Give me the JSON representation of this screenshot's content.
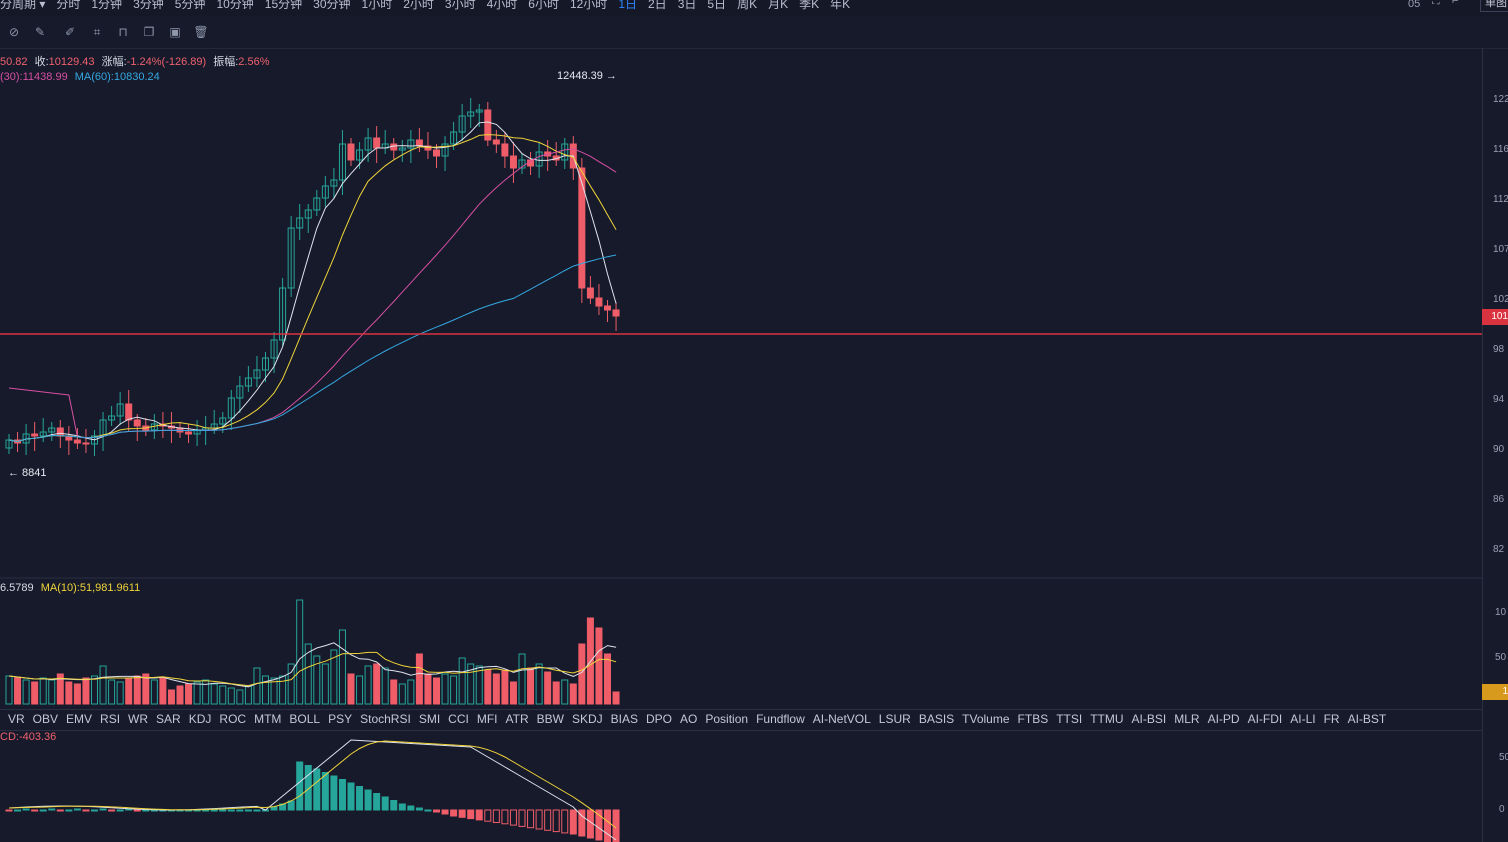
{
  "topbar": {
    "periods": [
      "分周期 ▾",
      "分时",
      "1分钟",
      "3分钟",
      "5分钟",
      "10分钟",
      "15分钟",
      "30分钟",
      "1小时",
      "2小时",
      "3小时",
      "4小时",
      "6小时",
      "12小时",
      "1日",
      "2日",
      "3日",
      "5日",
      "周K",
      "月K",
      "季K",
      "年K"
    ],
    "active_period": "1日",
    "right_label": "05",
    "right_button": "单图"
  },
  "toolbar": {
    "icons": [
      "ruler-icon",
      "pencil-icon",
      "pen-icon",
      "measure-icon",
      "lock-icon",
      "copy-icon",
      "screenshot-icon",
      "trash-icon"
    ]
  },
  "price_info": {
    "open_partial": "50.82",
    "close_label": "收:",
    "close_value": "10129.43",
    "change_label": "涨幅:",
    "change_value": "-1.24%(-126.89)",
    "amp_label": "振幅:",
    "amp_value": "2.56%",
    "ma30": "(30):11438.99",
    "ma60": "MA(60):10830.24",
    "high_marker": "12448.39 →",
    "low_marker": "← 8841"
  },
  "price_axis": [
    "122",
    "116",
    "112",
    "107",
    "102",
    "98",
    "94",
    "90",
    "86",
    "82"
  ],
  "current_price_tag": "101",
  "volume_info": {
    "vol_partial": "6.5789",
    "ma10": "MA(10):51,981.9611"
  },
  "volume_axis": [
    "10",
    "50"
  ],
  "volume_tag": "1",
  "indicator_tabs": [
    "VR",
    "OBV",
    "EMV",
    "RSI",
    "WR",
    "SAR",
    "KDJ",
    "ROC",
    "MTM",
    "BOLL",
    "PSY",
    "StochRSI",
    "SMI",
    "CCI",
    "MFI",
    "ATR",
    "BBW",
    "SKDJ",
    "BIAS",
    "DPO",
    "AO",
    "Position",
    "Fundflow",
    "AI-NetVOL",
    "LSUR",
    "BASIS",
    "TVolume",
    "FTBS",
    "TTSI",
    "TTMU",
    "AI-BSI",
    "MLR",
    "AI-PD",
    "AI-FDI",
    "AI-LI",
    "FR",
    "AI-BST"
  ],
  "macd_info": {
    "macd_partial": "CD:-403.36"
  },
  "macd_axis": [
    "50",
    "0"
  ],
  "colors": {
    "up": "#26a69a",
    "down": "#ef5d68",
    "ma_white": "#dfe3ec",
    "ma_yellow": "#f0d43a",
    "ma_pink": "#d64fa2",
    "ma_blue": "#35a8e0",
    "price_line": "#d9333f",
    "background": "#161a2b"
  }
}
